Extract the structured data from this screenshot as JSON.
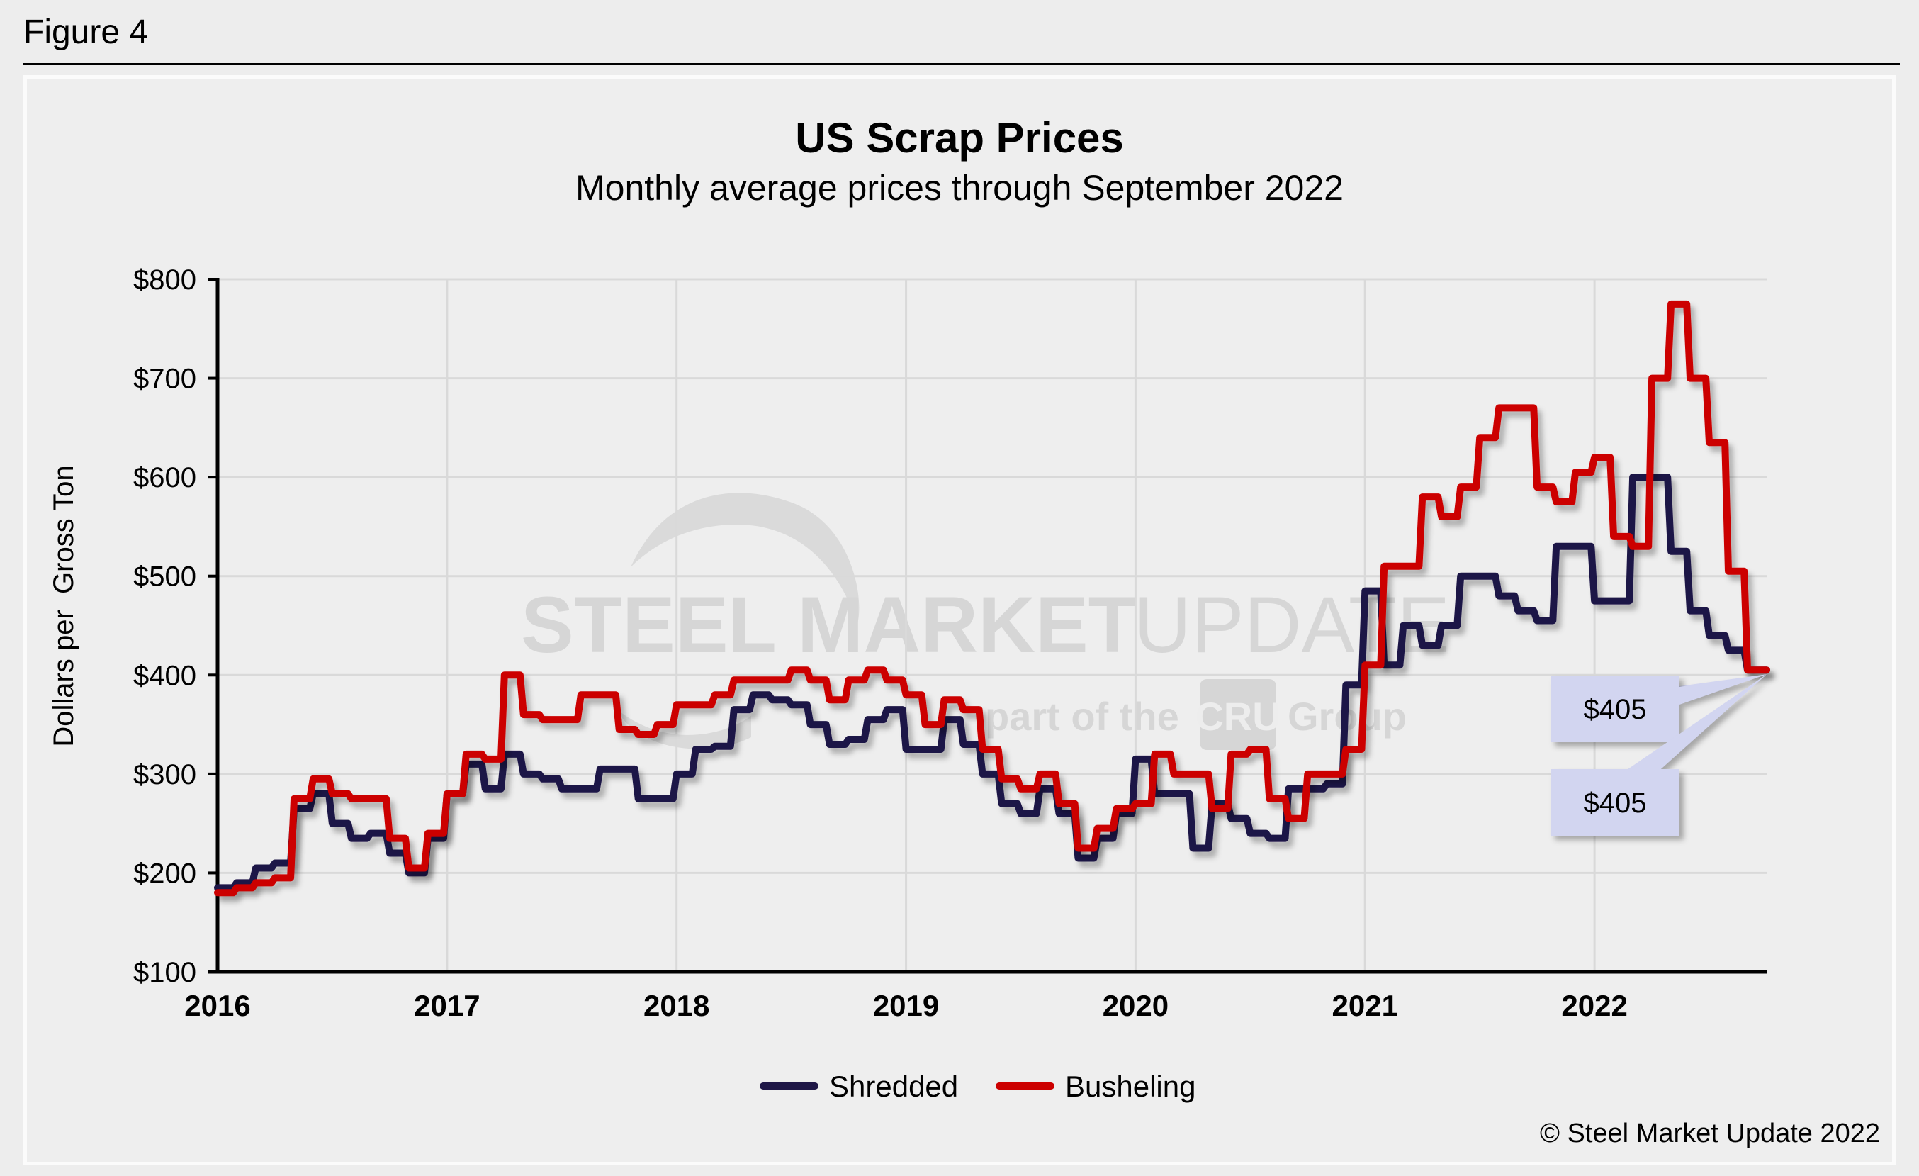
{
  "figure_label": "Figure 4",
  "copyright": "© Steel Market Update 2022",
  "watermark": {
    "brand_bold": "STEEL MARKET",
    "brand_light": "UPDATE",
    "tagline_pre": "part of the",
    "tagline_logo": "CRU",
    "tagline_post": "Group"
  },
  "colors": {
    "shredded": "#1f1747",
    "busheling": "#cc0000",
    "callout_fill": "#d2d5f0",
    "grid": "#d9d9d9"
  },
  "chart_data": {
    "type": "line",
    "title": "US Scrap Prices",
    "subtitle": "Monthly average prices through September 2022",
    "xlabel": "",
    "ylabel": "Dollars per  Gross Ton",
    "ylim": [
      100,
      800
    ],
    "yticks": [
      100,
      200,
      300,
      400,
      500,
      600,
      700,
      800
    ],
    "ytick_labels": [
      "$100",
      "$200",
      "$300",
      "$400",
      "$500",
      "$600",
      "$700",
      "$800"
    ],
    "xlim": [
      2016.0,
      2022.75
    ],
    "xticks": [
      2016,
      2017,
      2018,
      2019,
      2020,
      2021,
      2022
    ],
    "xtick_labels": [
      "2016",
      "2017",
      "2018",
      "2019",
      "2020",
      "2021",
      "2022"
    ],
    "grid": true,
    "legend_position": "bottom-center",
    "x_start": "2016-01",
    "x_frequency": "monthly",
    "series": [
      {
        "name": "Shredded",
        "values": [
          185,
          190,
          205,
          210,
          265,
          280,
          250,
          235,
          240,
          220,
          200,
          235,
          280,
          310,
          285,
          320,
          300,
          295,
          285,
          285,
          305,
          305,
          275,
          275,
          300,
          325,
          328,
          365,
          380,
          375,
          370,
          350,
          330,
          335,
          355,
          365,
          325,
          325,
          355,
          330,
          300,
          270,
          260,
          285,
          260,
          215,
          235,
          260,
          315,
          280,
          280,
          225,
          270,
          255,
          240,
          235,
          285,
          285,
          290,
          390,
          485,
          410,
          450,
          430,
          450,
          500,
          500,
          480,
          465,
          455,
          530,
          530,
          475,
          475,
          600,
          600,
          525,
          465,
          440,
          425,
          405
        ]
      },
      {
        "name": "Busheling",
        "values": [
          180,
          185,
          190,
          195,
          275,
          295,
          280,
          275,
          275,
          235,
          205,
          240,
          280,
          320,
          315,
          400,
          360,
          355,
          355,
          380,
          380,
          345,
          340,
          350,
          370,
          370,
          380,
          395,
          395,
          395,
          405,
          395,
          375,
          395,
          405,
          395,
          380,
          350,
          375,
          365,
          325,
          295,
          285,
          300,
          270,
          225,
          245,
          265,
          270,
          320,
          300,
          300,
          265,
          320,
          325,
          275,
          255,
          300,
          300,
          325,
          410,
          510,
          510,
          580,
          560,
          590,
          640,
          670,
          670,
          590,
          575,
          605,
          620,
          540,
          530,
          700,
          775,
          700,
          635,
          505,
          405
        ]
      }
    ],
    "annotations": [
      {
        "series": "Busheling",
        "label": "$405",
        "value": 405
      },
      {
        "series": "Shredded",
        "label": "$405",
        "value": 405
      }
    ]
  }
}
